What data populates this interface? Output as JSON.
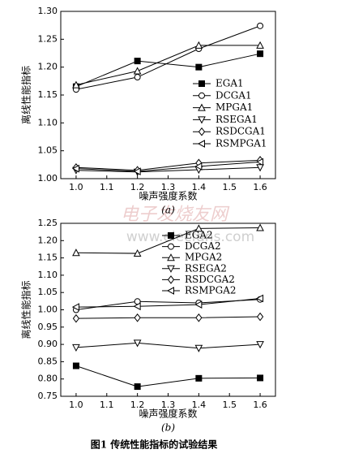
{
  "chart_data": [
    {
      "type": "line",
      "subtitle": "(a)",
      "x_label": "噪声强度系数",
      "y_label": "离线性能指标",
      "x": [
        1.0,
        1.2,
        1.4,
        1.6
      ],
      "xlim": [
        0.95,
        1.65
      ],
      "xticks": [
        {
          "value": 1.0,
          "label": "1.0"
        },
        1.1,
        1.2,
        1.3,
        1.4,
        1.5,
        1.6
      ],
      "ylim": [
        1.0,
        1.3
      ],
      "yticks": [
        {
          "value": 1.0,
          "label": "1.00"
        },
        1.05,
        {
          "value": 1.1,
          "label": "1.10"
        },
        1.15,
        {
          "value": 1.2,
          "label": "1.20"
        },
        1.25,
        {
          "value": 1.3,
          "label": "1.30"
        }
      ],
      "legend": "right",
      "series": [
        {
          "name": "EGA1",
          "color": "#000000",
          "marker": "square-filled",
          "values": [
            1.165,
            1.211,
            1.2,
            1.224
          ]
        },
        {
          "name": "DCGA1",
          "color": "#000000",
          "marker": "circle",
          "values": [
            1.16,
            1.182,
            1.233,
            1.274
          ]
        },
        {
          "name": "MPGA1",
          "color": "#000000",
          "marker": "triangle-up",
          "values": [
            1.168,
            1.193,
            1.239,
            1.239
          ]
        },
        {
          "name": "RSEGA1",
          "color": "#000000",
          "marker": "triangle-down",
          "values": [
            1.015,
            1.012,
            1.016,
            1.02
          ]
        },
        {
          "name": "RSDCGA1",
          "color": "#000000",
          "marker": "diamond",
          "values": [
            1.02,
            1.015,
            1.028,
            1.033
          ]
        },
        {
          "name": "RSMPGA1",
          "color": "#000000",
          "marker": "triangle-left",
          "values": [
            1.018,
            1.013,
            1.022,
            1.03
          ]
        }
      ]
    },
    {
      "type": "line",
      "subtitle": "(b)",
      "x_label": "噪声强度系数",
      "y_label": "离线性能指标",
      "x": [
        1.0,
        1.2,
        1.4,
        1.6
      ],
      "xlim": [
        0.95,
        1.65
      ],
      "xticks": [
        {
          "value": 1.0,
          "label": "1.0"
        },
        1.1,
        1.2,
        1.3,
        1.4,
        1.5,
        1.6
      ],
      "ylim": [
        0.75,
        1.25
      ],
      "yticks": [
        0.75,
        {
          "value": 0.8,
          "label": "0.80"
        },
        0.85,
        {
          "value": 0.9,
          "label": "0.90"
        },
        0.95,
        {
          "value": 1.0,
          "label": "1.00"
        },
        1.05,
        {
          "value": 1.1,
          "label": "1.10"
        },
        1.15,
        {
          "value": 1.2,
          "label": "1.20"
        },
        1.25
      ],
      "legend": "upper right",
      "series": [
        {
          "name": "EGA2",
          "color": "#000000",
          "marker": "square-filled",
          "values": [
            0.838,
            0.778,
            0.802,
            0.803
          ]
        },
        {
          "name": "DCGA2",
          "color": "#000000",
          "marker": "circle",
          "values": [
            1.0,
            1.024,
            1.02,
            1.03
          ]
        },
        {
          "name": "MPGA2",
          "color": "#000000",
          "marker": "triangle-up",
          "values": [
            1.165,
            1.163,
            1.235,
            1.237
          ]
        },
        {
          "name": "RSEGA2",
          "color": "#000000",
          "marker": "triangle-down",
          "values": [
            0.891,
            0.904,
            0.889,
            0.9
          ]
        },
        {
          "name": "RSDCGA2",
          "color": "#000000",
          "marker": "diamond",
          "values": [
            0.975,
            0.977,
            0.977,
            0.98
          ]
        },
        {
          "name": "RSMPGA2",
          "color": "#000000",
          "marker": "triangle-left",
          "values": [
            1.008,
            1.01,
            1.015,
            1.033
          ]
        }
      ]
    }
  ],
  "caption": "图1  传统性能指标的试验结果",
  "watermark": [
    "电子发烧友网",
    "www.elecfans.com"
  ]
}
